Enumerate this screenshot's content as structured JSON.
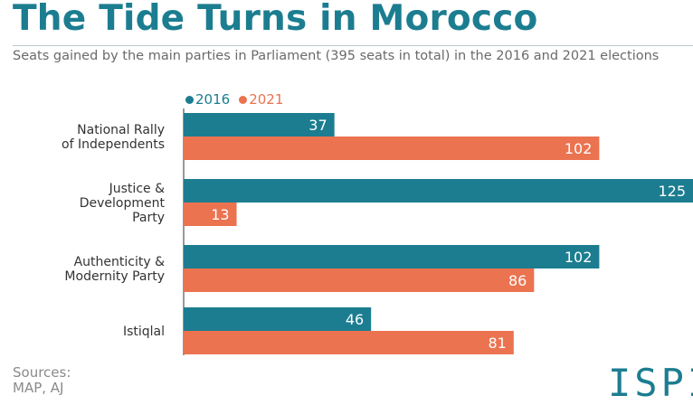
{
  "title": "The Tide Turns in Morocco",
  "subtitle": "Seats gained by the main parties in Parliament (395 seats in total) in the 2016 and 2021 elections",
  "sources_label": "Sources:",
  "sources_text": "MAP, AJ",
  "logo_text": "ISPI",
  "colors": {
    "series_2016": "#1c7d90",
    "series_2021": "#eb7350",
    "title": "#1c7d90"
  },
  "chart_data": {
    "type": "bar",
    "orientation": "horizontal",
    "title": "The Tide Turns in Morocco",
    "subtitle": "Seats gained by the main parties in Parliament (395 seats in total) in the 2016 and 2021 elections",
    "categories": [
      [
        "National Rally",
        "of Independents"
      ],
      [
        "Justice &",
        "Development",
        "Party"
      ],
      [
        "Authenticity &",
        "Modernity Party"
      ],
      [
        "Istiqlal"
      ]
    ],
    "series": [
      {
        "name": "2016",
        "color": "#1c7d90",
        "values": [
          37,
          125,
          102,
          46
        ]
      },
      {
        "name": "2021",
        "color": "#eb7350",
        "values": [
          102,
          13,
          86,
          81
        ]
      }
    ],
    "xlim": [
      0,
      125
    ],
    "grid": false,
    "legend": "top-left",
    "data_labels": true
  }
}
